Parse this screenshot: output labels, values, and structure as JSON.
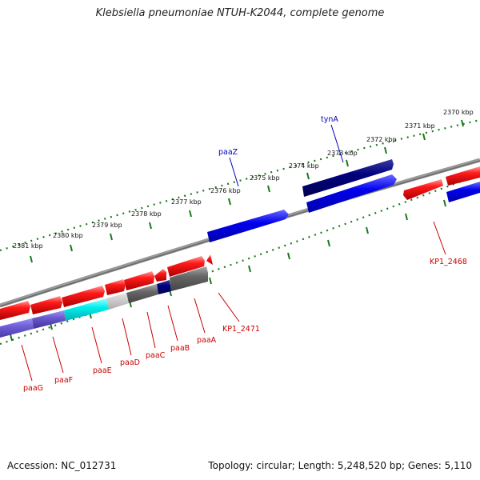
{
  "title": "Klebsiella pneumoniae NTUH-K2044, complete genome",
  "accession": "Accession: NC_012731",
  "stats": "Topology: circular; Length: 5,248,520 bp; Genes: 5,110",
  "scale_labels": [
    "2370 kbp",
    "2371 kbp",
    "2372 kbp",
    "2373 kbp",
    "2374 kbp",
    "2375 kbp",
    "2376 kbp",
    "2377 kbp",
    "2378 kbp",
    "2379 kbp",
    "2380 kbp",
    "2381 kbp"
  ],
  "gene_labels": {
    "tynA": "tynA",
    "paaZ": "paaZ",
    "KP1_2468": "KP1_2468",
    "KP1_2471": "KP1_2471",
    "paaA": "paaA",
    "paaB": "paaB",
    "paaC": "paaC",
    "paaD": "paaD",
    "paaE": "paaE",
    "paaF": "paaF",
    "paaG": "paaG"
  },
  "colors": {
    "forward_gene": "#0000ee",
    "forward_gene_dark": "#000080",
    "reverse_gene": "#ee0000",
    "label_forward": "#0000bb",
    "label_reverse": "#cc0000",
    "tick": "#1a7a1a",
    "backbone": "#888888"
  }
}
